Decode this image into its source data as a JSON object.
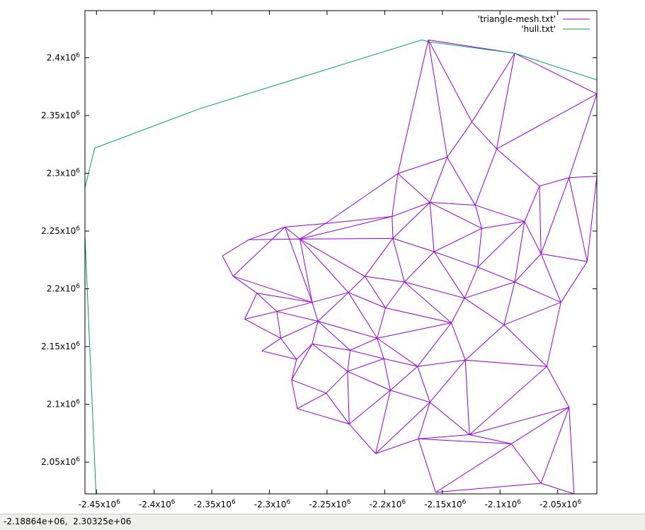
{
  "chart_data": {
    "type": "line",
    "title": "",
    "xlabel": "",
    "ylabel": "",
    "xlim": [
      -2460000.0,
      -2016000.0
    ],
    "ylim": [
      2022500.0,
      2440800.0
    ],
    "x_ticks": [
      -2450000.0,
      -2400000.0,
      -2350000.0,
      -2300000.0,
      -2250000.0,
      -2200000.0,
      -2150000.0,
      -2100000.0,
      -2050000.0
    ],
    "x_tick_labels": [
      "-2.45x10",
      "-2.4x10",
      "-2.35x10",
      "-2.3x10",
      "-2.25x10",
      "-2.2x10",
      "-2.15x10",
      "-2.1x10",
      "-2.05x10"
    ],
    "y_ticks": [
      2050000.0,
      2100000.0,
      2150000.0,
      2200000.0,
      2250000.0,
      2300000.0,
      2350000.0,
      2400000.0
    ],
    "y_tick_labels": [
      "2.05x10",
      "2.1x10",
      "2.15x10",
      "2.2x10",
      "2.25x10",
      "2.3x10",
      "2.35x10",
      "2.4x10"
    ],
    "tick_exponent": "6",
    "grid": false,
    "legend_placement": "top-right",
    "series": [
      {
        "name": "'triangle-mesh.txt'",
        "color": "#9400d3",
        "kind": "triangle mesh",
        "nodes": [
          [
            -2162200.0,
            2415400.0
          ],
          [
            -2087200.0,
            2403900.0
          ],
          [
            -2016000.0,
            2368600.0
          ],
          [
            -2124400.0,
            2344400.0
          ],
          [
            -2145800.0,
            2313900.0
          ],
          [
            -2102900.0,
            2321100.0
          ],
          [
            -2065800.0,
            2288900.0
          ],
          [
            -2188600.0,
            2299800.0
          ],
          [
            -2121500.0,
            2272400.0
          ],
          [
            -2040100.0,
            2296200.0
          ],
          [
            -2016000.0,
            2297400.0
          ],
          [
            -2160800.0,
            2274800.0
          ],
          [
            -2193600.0,
            2262600.0
          ],
          [
            -2251500.0,
            2256500.0
          ],
          [
            -2115800.0,
            2252300.0
          ],
          [
            -2192900.0,
            2243700.0
          ],
          [
            -2078700.0,
            2258300.0
          ],
          [
            -2273600.0,
            2243100.0
          ],
          [
            -2157200.0,
            2232100.0
          ],
          [
            -2064400.0,
            2230300.0
          ],
          [
            -2119300.0,
            2218700.0
          ],
          [
            -2024400.0,
            2223600.0
          ],
          [
            -2217200.0,
            2210800.0
          ],
          [
            -2182900.0,
            2205900.0
          ],
          [
            -2087200.0,
            2205900.0
          ],
          [
            -2231500.0,
            2196800.0
          ],
          [
            -2262900.0,
            2188300.0
          ],
          [
            -2130800.0,
            2191900.0
          ],
          [
            -2047200.0,
            2188300.0
          ],
          [
            -2199300.0,
            2183500.0
          ],
          [
            -2257900.0,
            2171900.0
          ],
          [
            -2142200.0,
            2170600.0
          ],
          [
            -2206500.0,
            2157200.0
          ],
          [
            -2096500.0,
            2168800.0
          ],
          [
            -2262900.0,
            2152300.0
          ],
          [
            -2230000.0,
            2146800.0
          ],
          [
            -2130100.0,
            2138300.0
          ],
          [
            -2200800.0,
            2139500.0
          ],
          [
            -2171500.0,
            2132800.0
          ],
          [
            -2059400.0,
            2132800.0
          ],
          [
            -2232200.0,
            2128500.0
          ],
          [
            -2280800.0,
            2121200.0
          ],
          [
            -2195100.0,
            2112200.0
          ],
          [
            -2250800.0,
            2109700.0
          ],
          [
            -2160800.0,
            2101800.0
          ],
          [
            -2040100.0,
            2097500.0
          ],
          [
            -2275800.0,
            2096300.0
          ],
          [
            -2126500.0,
            2073700.0
          ],
          [
            -2230800.0,
            2082900.0
          ],
          [
            -2170800.0,
            2070100.0
          ],
          [
            -2090100.0,
            2065800.0
          ],
          [
            -2207900.0,
            2057300.0
          ],
          [
            -2064400.0,
            2031700.0
          ],
          [
            -2155800.0,
            2023800.0
          ],
          [
            -2035800.0,
            2022500.0
          ],
          [
            -2286500.0,
            2253500.0
          ],
          [
            -2317900.0,
            2242500.0
          ],
          [
            -2340800.0,
            2228500.0
          ],
          [
            -2331500.0,
            2210900.0
          ],
          [
            -2310800.0,
            2196200.0
          ],
          [
            -2321500.0,
            2173700.0
          ],
          [
            -2293600.0,
            2180400.0
          ],
          [
            -2290100.0,
            2157200.0
          ],
          [
            -2306500.0,
            2146200.0
          ],
          [
            -2276500.0,
            2138900.0
          ]
        ],
        "edges": [
          [
            0,
            1
          ],
          [
            1,
            2
          ],
          [
            0,
            3
          ],
          [
            1,
            3
          ],
          [
            0,
            4
          ],
          [
            3,
            4
          ],
          [
            3,
            5
          ],
          [
            1,
            5
          ],
          [
            2,
            5
          ],
          [
            4,
            7
          ],
          [
            0,
            7
          ],
          [
            4,
            8
          ],
          [
            5,
            8
          ],
          [
            5,
            6
          ],
          [
            2,
            9
          ],
          [
            6,
            9
          ],
          [
            9,
            10
          ],
          [
            7,
            11
          ],
          [
            4,
            11
          ],
          [
            8,
            11
          ],
          [
            7,
            12
          ],
          [
            11,
            12
          ],
          [
            12,
            13
          ],
          [
            7,
            13
          ],
          [
            8,
            14
          ],
          [
            11,
            14
          ],
          [
            6,
            16
          ],
          [
            8,
            16
          ],
          [
            14,
            16
          ],
          [
            6,
            19
          ],
          [
            9,
            19
          ],
          [
            10,
            21
          ],
          [
            9,
            21
          ],
          [
            19,
            21
          ],
          [
            12,
            15
          ],
          [
            11,
            15
          ],
          [
            11,
            18
          ],
          [
            15,
            18
          ],
          [
            14,
            18
          ],
          [
            13,
            17
          ],
          [
            12,
            17
          ],
          [
            15,
            17
          ],
          [
            16,
            19
          ],
          [
            14,
            20
          ],
          [
            16,
            20
          ],
          [
            18,
            20
          ],
          [
            15,
            22
          ],
          [
            17,
            22
          ],
          [
            18,
            23
          ],
          [
            22,
            23
          ],
          [
            15,
            23
          ],
          [
            20,
            27
          ],
          [
            18,
            27
          ],
          [
            23,
            27
          ],
          [
            19,
            24
          ],
          [
            20,
            24
          ],
          [
            16,
            24
          ],
          [
            21,
            28
          ],
          [
            19,
            28
          ],
          [
            24,
            28
          ],
          [
            22,
            25
          ],
          [
            17,
            25
          ],
          [
            25,
            26
          ],
          [
            17,
            26
          ],
          [
            23,
            29
          ],
          [
            22,
            29
          ],
          [
            25,
            29
          ],
          [
            24,
            27
          ],
          [
            27,
            31
          ],
          [
            23,
            31
          ],
          [
            29,
            31
          ],
          [
            24,
            33
          ],
          [
            27,
            33
          ],
          [
            28,
            33
          ],
          [
            26,
            30
          ],
          [
            25,
            30
          ],
          [
            29,
            32
          ],
          [
            30,
            32
          ],
          [
            25,
            32
          ],
          [
            31,
            32
          ],
          [
            31,
            38
          ],
          [
            32,
            38
          ],
          [
            31,
            36
          ],
          [
            33,
            36
          ],
          [
            36,
            38
          ],
          [
            30,
            34
          ],
          [
            32,
            35
          ],
          [
            30,
            35
          ],
          [
            34,
            35
          ],
          [
            32,
            37
          ],
          [
            35,
            37
          ],
          [
            37,
            38
          ],
          [
            33,
            39
          ],
          [
            28,
            39
          ],
          [
            36,
            39
          ],
          [
            35,
            40
          ],
          [
            34,
            40
          ],
          [
            37,
            40
          ],
          [
            38,
            42
          ],
          [
            37,
            42
          ],
          [
            40,
            42
          ],
          [
            34,
            41
          ],
          [
            40,
            43
          ],
          [
            41,
            43
          ],
          [
            40,
            48
          ],
          [
            42,
            48
          ],
          [
            43,
            48
          ],
          [
            38,
            44
          ],
          [
            42,
            44
          ],
          [
            36,
            44
          ],
          [
            39,
            45
          ],
          [
            36,
            47
          ],
          [
            44,
            47
          ],
          [
            39,
            47
          ],
          [
            45,
            47
          ],
          [
            41,
            46
          ],
          [
            43,
            46
          ],
          [
            46,
            48
          ],
          [
            44,
            49
          ],
          [
            47,
            49
          ],
          [
            42,
            51
          ],
          [
            48,
            51
          ],
          [
            49,
            51
          ],
          [
            44,
            51
          ],
          [
            47,
            50
          ],
          [
            45,
            50
          ],
          [
            49,
            50
          ],
          [
            50,
            52
          ],
          [
            45,
            52
          ],
          [
            49,
            53
          ],
          [
            50,
            53
          ],
          [
            52,
            53
          ],
          [
            52,
            54
          ],
          [
            45,
            54
          ],
          [
            17,
            55
          ],
          [
            13,
            55
          ],
          [
            55,
            56
          ],
          [
            56,
            57
          ],
          [
            57,
            58
          ],
          [
            55,
            58
          ],
          [
            58,
            59
          ],
          [
            26,
            59
          ],
          [
            59,
            61
          ],
          [
            26,
            61
          ],
          [
            59,
            60
          ],
          [
            60,
            61
          ],
          [
            60,
            62
          ],
          [
            61,
            62
          ],
          [
            62,
            63
          ],
          [
            62,
            64
          ],
          [
            30,
            62
          ],
          [
            34,
            64
          ],
          [
            41,
            64
          ],
          [
            26,
            55
          ],
          [
            58,
            26
          ],
          [
            17,
            56
          ],
          [
            63,
            64
          ],
          [
            61,
            30
          ]
        ]
      },
      {
        "name": "'hull.txt'",
        "color": "#009e73",
        "kind": "polyline",
        "points": [
          [
            -2450400.0,
            2022500.0
          ],
          [
            -2461500.0,
            2281000.0
          ],
          [
            -2455800.0,
            2304700.0
          ],
          [
            -2451500.0,
            2321800.0
          ],
          [
            -2360800.0,
            2355800.0
          ],
          [
            -2167900.0,
            2415400.0
          ],
          [
            -2160100.0,
            2413600.0
          ],
          [
            -2087200.0,
            2403900.0
          ],
          [
            -2016000.0,
            2380800.0
          ]
        ]
      }
    ]
  },
  "status_bar": {
    "coordinates": "-2.18864e+06,  2.30325e+06"
  }
}
